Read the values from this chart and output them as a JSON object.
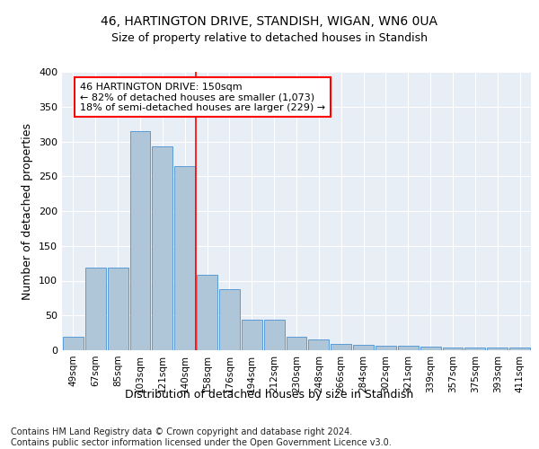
{
  "title1": "46, HARTINGTON DRIVE, STANDISH, WIGAN, WN6 0UA",
  "title2": "Size of property relative to detached houses in Standish",
  "xlabel": "Distribution of detached houses by size in Standish",
  "ylabel": "Number of detached properties",
  "categories": [
    "49sqm",
    "67sqm",
    "85sqm",
    "103sqm",
    "121sqm",
    "140sqm",
    "158sqm",
    "176sqm",
    "194sqm",
    "212sqm",
    "230sqm",
    "248sqm",
    "266sqm",
    "284sqm",
    "302sqm",
    "321sqm",
    "339sqm",
    "357sqm",
    "375sqm",
    "393sqm",
    "411sqm"
  ],
  "bar_heights": [
    19,
    119,
    119,
    315,
    293,
    265,
    109,
    88,
    44,
    44,
    20,
    15,
    9,
    8,
    7,
    6,
    5,
    4,
    4,
    4,
    4
  ],
  "bar_color": "#aec6d8",
  "bar_edge_color": "#5b9bd5",
  "vline_position": 5.5,
  "vline_color": "red",
  "annotation_text": "46 HARTINGTON DRIVE: 150sqm\n← 82% of detached houses are smaller (1,073)\n18% of semi-detached houses are larger (229) →",
  "annotation_box_color": "white",
  "annotation_box_edge_color": "red",
  "ylim": [
    0,
    400
  ],
  "yticks": [
    0,
    50,
    100,
    150,
    200,
    250,
    300,
    350,
    400
  ],
  "background_color": "#e8eef5",
  "grid_color": "white",
  "footnote": "Contains HM Land Registry data © Crown copyright and database right 2024.\nContains public sector information licensed under the Open Government Licence v3.0.",
  "title1_fontsize": 10,
  "title2_fontsize": 9,
  "xlabel_fontsize": 9,
  "ylabel_fontsize": 9,
  "tick_fontsize": 7.5,
  "ytick_fontsize": 8,
  "footnote_fontsize": 7,
  "annot_fontsize": 8
}
